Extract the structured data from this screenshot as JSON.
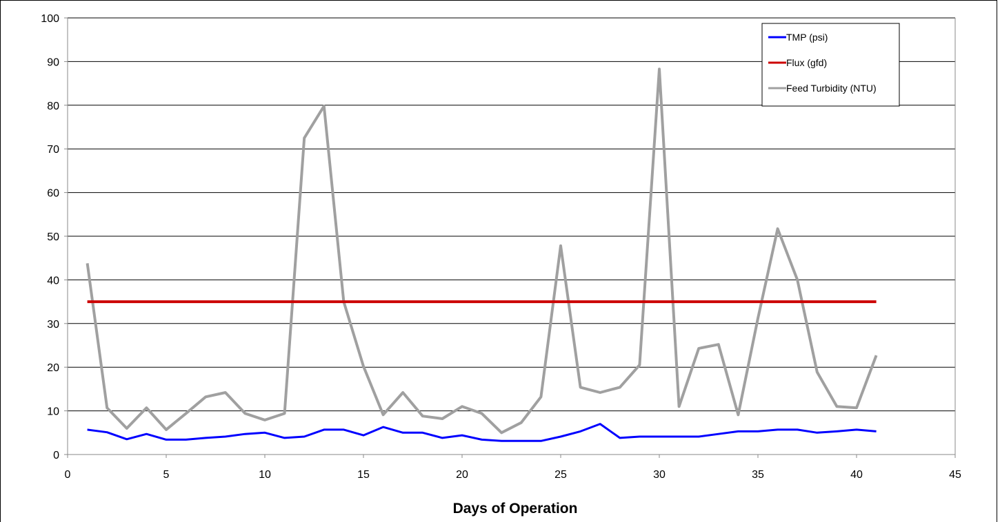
{
  "chart_data": {
    "type": "line",
    "title": "",
    "xlabel": "Days of Operation",
    "ylabel": "",
    "xlim": [
      0,
      45
    ],
    "ylim": [
      0,
      100
    ],
    "x_ticks": [
      "0",
      "5",
      "10",
      "15",
      "20",
      "25",
      "30",
      "35",
      "40",
      "45"
    ],
    "y_ticks": [
      "0",
      "10",
      "20",
      "30",
      "40",
      "50",
      "60",
      "70",
      "80",
      "90",
      "100"
    ],
    "grid": "horizontal",
    "legend_position": "top-right",
    "x": [
      1,
      2,
      3,
      4,
      5,
      6,
      7,
      8,
      9,
      10,
      11,
      12,
      13,
      14,
      15,
      16,
      17,
      18,
      19,
      20,
      21,
      22,
      23,
      24,
      25,
      26,
      27,
      28,
      29,
      30,
      31,
      32,
      33,
      34,
      35,
      36,
      37,
      38,
      39,
      40,
      41
    ],
    "series": [
      {
        "name": "TMP (psi)",
        "color": "#0000ff",
        "values": [
          5.7,
          5.1,
          3.5,
          4.7,
          3.4,
          3.4,
          3.8,
          4.1,
          4.7,
          5.0,
          3.8,
          4.1,
          5.7,
          5.7,
          4.4,
          6.3,
          5.0,
          5.0,
          3.8,
          4.4,
          3.4,
          3.1,
          3.1,
          3.1,
          4.1,
          5.3,
          7.0,
          3.8,
          4.1,
          4.1,
          4.1,
          4.1,
          4.7,
          5.3,
          5.3,
          5.7,
          5.7,
          5.0,
          5.3,
          5.7,
          5.3
        ]
      },
      {
        "name": "Flux (gfd)",
        "color": "#cc0000",
        "values": [
          35,
          35,
          35,
          35,
          35,
          35,
          35,
          35,
          35,
          35,
          35,
          35,
          35,
          35,
          35,
          35,
          35,
          35,
          35,
          35,
          35,
          35,
          35,
          35,
          35,
          35,
          35,
          35,
          35,
          35,
          35,
          35,
          35,
          35,
          35,
          35,
          35,
          35,
          35,
          35,
          35
        ]
      },
      {
        "name": "Feed Turbidity (NTU)",
        "color": "#a0a0a0",
        "values": [
          43.8,
          10.7,
          6.0,
          10.7,
          5.7,
          9.4,
          13.2,
          14.2,
          9.4,
          7.9,
          9.4,
          72.5,
          79.8,
          35.0,
          20.2,
          9.1,
          14.2,
          8.8,
          8.2,
          11.0,
          9.4,
          5.0,
          7.3,
          13.2,
          47.8,
          15.4,
          14.2,
          15.4,
          20.5,
          88.3,
          11.0,
          24.3,
          25.2,
          9.1,
          31.2,
          51.7,
          40.0,
          18.9,
          11.0,
          10.7,
          22.7
        ]
      }
    ]
  }
}
